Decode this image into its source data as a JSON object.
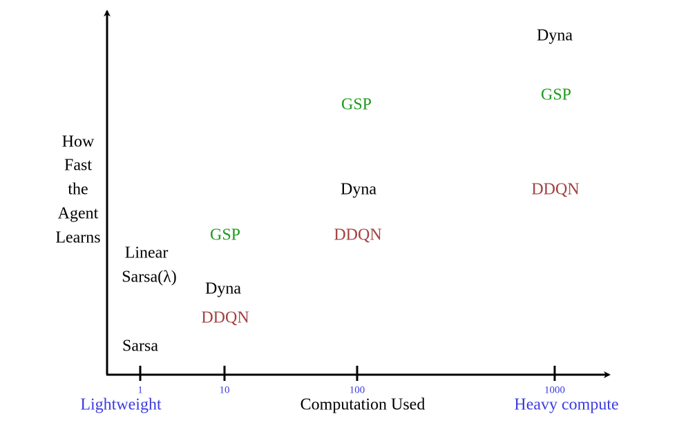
{
  "axes": {
    "y_label_lines": [
      "How",
      "Fast",
      "the",
      "Agent",
      "Learns"
    ],
    "x_label": "Computation Used",
    "x_left_label": "Lightweight",
    "x_right_label": "Heavy compute",
    "x_ticks": [
      "1",
      "10",
      "100",
      "1000"
    ]
  },
  "methods": [
    {
      "text": "Dyna"
    },
    {
      "text": "GSP"
    },
    {
      "text": "GSP"
    },
    {
      "text": "Dyna"
    },
    {
      "text": "DDQN"
    },
    {
      "text": "GSP"
    },
    {
      "text": "DDQN"
    },
    {
      "text": "Linear"
    },
    {
      "text": "Sarsa(λ)"
    },
    {
      "text": "Dyna"
    },
    {
      "text": "DDQN"
    },
    {
      "text": "Sarsa"
    }
  ]
}
